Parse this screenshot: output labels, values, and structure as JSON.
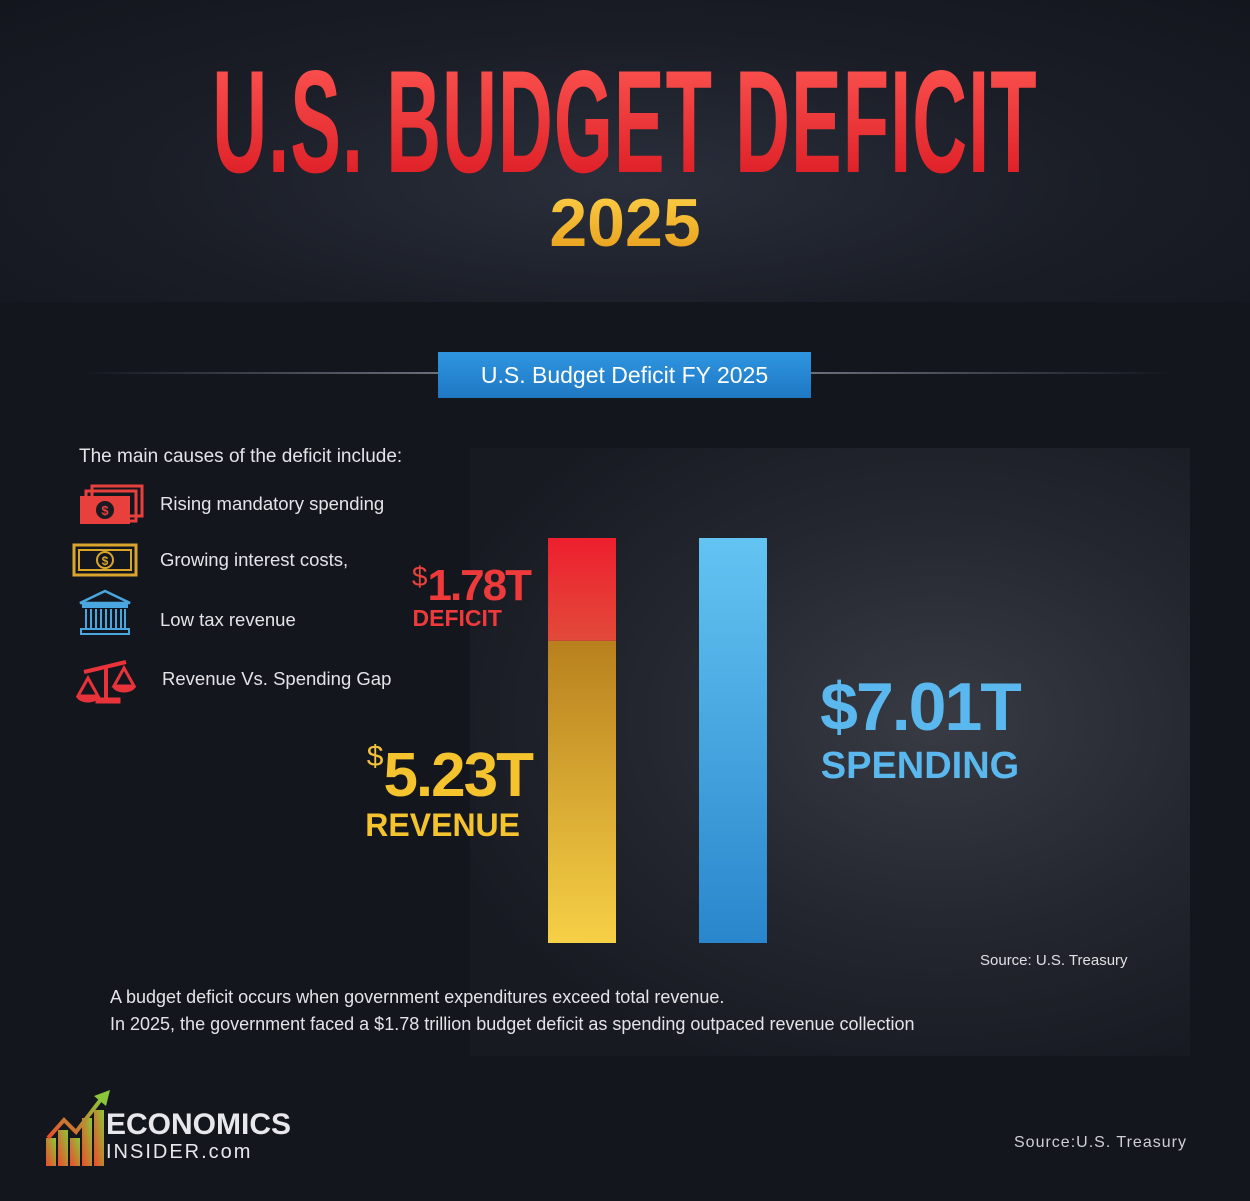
{
  "header": {
    "title": "U.S. BUDGET DEFICIT",
    "year": "2025"
  },
  "banner": "U.S. Budget Deficit FY 2025",
  "causes": {
    "heading": "The main causes of the deficit include:",
    "items": [
      {
        "label": "Rising mandatory spending",
        "icon": "money-stack-icon"
      },
      {
        "label": "Growing interest costs,",
        "icon": "banknote-icon"
      },
      {
        "label": "Low tax revenue",
        "icon": "government-building-icon"
      },
      {
        "label": "Revenue Vs. Spending Gap",
        "icon": "balance-scale-icon"
      }
    ]
  },
  "chart_data": {
    "type": "bar",
    "stacked": true,
    "unit": "trillion USD",
    "bars": [
      {
        "segments": [
          {
            "name": "REVENUE",
            "value": 5.23,
            "color": "#e6b52a"
          },
          {
            "name": "DEFICIT",
            "value": 1.78,
            "color": "#ee2a30"
          }
        ]
      },
      {
        "segments": [
          {
            "name": "SPENDING",
            "value": 7.01,
            "color": "#3ea2e4"
          }
        ]
      }
    ],
    "labels": {
      "deficit": {
        "currency": "$",
        "value": "1.78T",
        "name": "DEFICIT"
      },
      "revenue": {
        "currency": "$",
        "value": "5.23T",
        "name": "REVENUE"
      },
      "spending": {
        "value": "$7.01T",
        "name": "SPENDING"
      }
    },
    "ylim": [
      0,
      7.01
    ]
  },
  "source_chart": "Source: U.S. Treasury",
  "notes": [
    "A budget deficit occurs when government expenditures exceed total revenue.",
    "In 2025, the government faced a $1.78 trillion budget deficit as spending outpaced revenue collection"
  ],
  "footer": {
    "logo_top": "ECONOMICS",
    "logo_bottom": "INSIDER.com",
    "source": "Source:U.S. Treasury"
  }
}
